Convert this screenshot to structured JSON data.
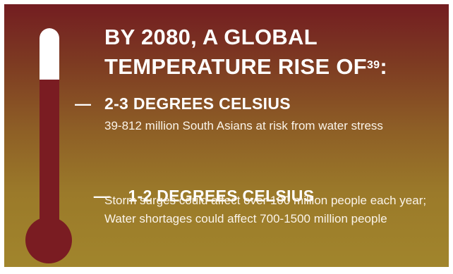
{
  "headline": {
    "text": "BY 2080, A GLOBAL TEMPERATURE RISE OF",
    "footnote": "39",
    "suffix": ":"
  },
  "thermometer": {
    "level_fraction": 0.72
  },
  "items": [
    {
      "dash": "—",
      "title": "2-3 DEGREES CELSIUS",
      "body": "39-812 million South Asians at risk from water stress"
    },
    {
      "dash": "—",
      "title": " 1-2 DEGREES CELSIUS",
      "body": "Storm surges could affect over 100 million people each year; Water shortages could affect 700-1500 million people"
    }
  ],
  "colors": {
    "top": "#731d21",
    "bottom": "#a1852c",
    "thermometer": "#7a1c22"
  }
}
